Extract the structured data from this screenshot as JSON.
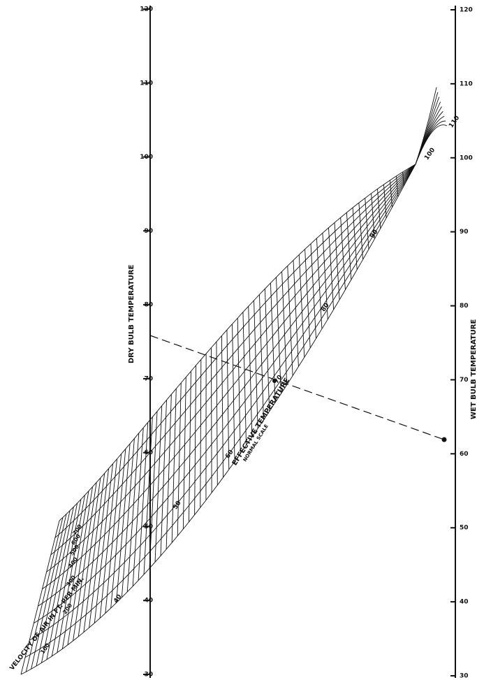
{
  "left_axis": {
    "title": "DRY BULB TEMPERATURE",
    "range": [
      30,
      120
    ],
    "ticks": [
      30,
      40,
      50,
      60,
      70,
      80,
      90,
      100,
      110,
      120
    ]
  },
  "right_axis": {
    "title": "WET BULB TEMPERATURE",
    "range": [
      30,
      120
    ],
    "ticks": [
      30,
      40,
      50,
      60,
      70,
      80,
      90,
      100,
      110,
      120
    ]
  },
  "velocity_scale": {
    "title": "VELOCITY OF AIR IN FT. PER MIN.",
    "labels": [
      "100",
      "200",
      "300",
      "400",
      "500",
      "600",
      "700"
    ]
  },
  "effective_temperature": {
    "title": "EFFECTIVE TEMPERATURE",
    "subtitle": "NORMAL SCALE",
    "labels": [
      "40",
      "50",
      "60",
      "70",
      "80",
      "90",
      "100",
      "110"
    ]
  }
}
